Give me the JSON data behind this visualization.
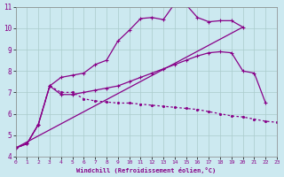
{
  "xlabel": "Windchill (Refroidissement éolien,°C)",
  "xlim": [
    0,
    23
  ],
  "ylim": [
    4,
    11
  ],
  "xticks": [
    0,
    1,
    2,
    3,
    4,
    5,
    6,
    7,
    8,
    9,
    10,
    11,
    12,
    13,
    14,
    15,
    16,
    17,
    18,
    19,
    20,
    21,
    22,
    23
  ],
  "yticks": [
    4,
    5,
    6,
    7,
    8,
    9,
    10,
    11
  ],
  "background_color": "#cce9f0",
  "line_color": "#880088",
  "grid_color": "#aacccc",
  "line1_x": [
    0,
    1,
    2,
    3,
    4,
    5,
    6,
    7,
    8,
    9,
    10,
    11,
    12,
    13,
    14,
    15,
    16,
    17,
    18,
    19,
    20
  ],
  "line1_y": [
    4.4,
    4.6,
    5.5,
    7.3,
    7.7,
    7.8,
    7.9,
    8.3,
    8.5,
    9.4,
    9.9,
    10.45,
    10.5,
    10.4,
    11.15,
    11.1,
    10.5,
    10.3,
    10.35,
    10.35,
    10.05
  ],
  "line2_x": [
    0,
    1,
    2,
    3,
    4,
    5,
    6,
    7,
    8,
    9,
    10,
    11,
    12,
    13,
    14,
    15,
    16,
    17,
    18,
    19,
    20,
    21,
    22,
    23
  ],
  "line2_y": [
    4.4,
    4.6,
    5.5,
    7.3,
    7.0,
    7.0,
    6.7,
    6.6,
    6.55,
    6.5,
    6.5,
    6.45,
    6.4,
    6.35,
    6.3,
    6.25,
    6.2,
    6.1,
    6.0,
    5.9,
    5.85,
    5.75,
    5.65,
    5.6
  ],
  "line3_x": [
    0,
    1,
    2,
    3,
    4,
    5,
    6,
    7,
    8,
    9,
    10,
    11,
    12,
    13,
    14,
    15,
    16,
    17,
    18,
    19,
    20,
    21,
    22
  ],
  "line3_y": [
    4.4,
    4.6,
    5.5,
    7.3,
    6.9,
    6.9,
    7.0,
    7.1,
    7.2,
    7.3,
    7.5,
    7.7,
    7.9,
    8.1,
    8.3,
    8.5,
    8.7,
    8.85,
    8.9,
    8.85,
    8.0,
    7.9,
    6.5
  ],
  "line4_x": [
    0,
    20
  ],
  "line4_y": [
    4.4,
    10.05
  ]
}
